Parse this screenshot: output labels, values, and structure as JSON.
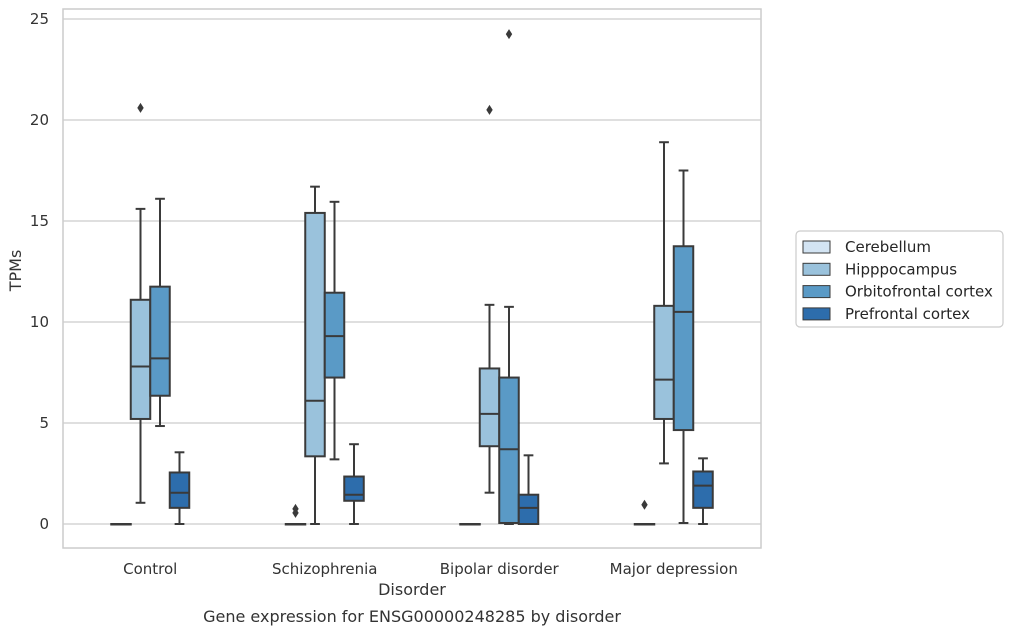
{
  "chart_data": {
    "type": "box",
    "caption": "Gene expression for ENSG00000248285 by disorder",
    "xlabel": "Disorder",
    "ylabel": "TPMs",
    "ylim": [
      -1.2,
      25.5
    ],
    "yticks": [
      "0",
      "5",
      "10",
      "15",
      "20",
      "25"
    ],
    "ytick_values": [
      0,
      5,
      10,
      15,
      20,
      25
    ],
    "grid": "horizontal",
    "legend_position": "right",
    "categories": [
      "Control",
      "Schizophrenia",
      "Bipolar disorder",
      "Major depression"
    ],
    "series": [
      {
        "name": "Cerebellum",
        "color": "#d3e4f3",
        "boxes": [
          {
            "min": 0,
            "q1": 0,
            "median": 0,
            "q3": 0,
            "max": 0,
            "outliers": []
          },
          {
            "min": 0,
            "q1": 0,
            "median": 0,
            "q3": 0,
            "max": 0,
            "outliers": [
              0.55,
              0.75
            ]
          },
          {
            "min": 0,
            "q1": 0,
            "median": 0,
            "q3": 0,
            "max": 0,
            "outliers": []
          },
          {
            "min": 0,
            "q1": 0,
            "median": 0,
            "q3": 0,
            "max": 0,
            "outliers": [
              0.95
            ]
          }
        ]
      },
      {
        "name": "Hipppocampus",
        "color": "#9ac2dc",
        "boxes": [
          {
            "min": 1.05,
            "q1": 5.2,
            "median": 7.8,
            "q3": 11.1,
            "max": 15.6,
            "outliers": [
              20.6
            ]
          },
          {
            "min": 0,
            "q1": 3.35,
            "median": 6.1,
            "q3": 15.4,
            "max": 16.7,
            "outliers": []
          },
          {
            "min": 1.55,
            "q1": 3.85,
            "median": 5.45,
            "q3": 7.7,
            "max": 10.85,
            "outliers": [
              20.5
            ]
          },
          {
            "min": 3.0,
            "q1": 5.2,
            "median": 7.15,
            "q3": 10.8,
            "max": 18.9,
            "outliers": []
          }
        ]
      },
      {
        "name": "Orbitofrontal cortex",
        "color": "#5a9ac6",
        "boxes": [
          {
            "min": 4.85,
            "q1": 6.35,
            "median": 8.2,
            "q3": 11.75,
            "max": 16.1,
            "outliers": []
          },
          {
            "min": 3.2,
            "q1": 7.25,
            "median": 9.3,
            "q3": 11.45,
            "max": 15.95,
            "outliers": []
          },
          {
            "min": 0,
            "q1": 0.05,
            "median": 3.7,
            "q3": 7.25,
            "max": 10.75,
            "outliers": [
              24.25
            ]
          },
          {
            "min": 0.05,
            "q1": 4.65,
            "median": 10.5,
            "q3": 13.75,
            "max": 17.5,
            "outliers": []
          }
        ]
      },
      {
        "name": "Prefrontal cortex",
        "color": "#2d6dac",
        "boxes": [
          {
            "min": 0,
            "q1": 0.8,
            "median": 1.55,
            "q3": 2.55,
            "max": 3.55,
            "outliers": []
          },
          {
            "min": 0,
            "q1": 1.15,
            "median": 1.45,
            "q3": 2.35,
            "max": 3.95,
            "outliers": []
          },
          {
            "min": 0,
            "q1": 0,
            "median": 0.8,
            "q3": 1.45,
            "max": 3.4,
            "outliers": []
          },
          {
            "min": 0,
            "q1": 0.8,
            "median": 1.9,
            "q3": 2.6,
            "max": 3.25,
            "outliers": []
          }
        ]
      }
    ]
  }
}
